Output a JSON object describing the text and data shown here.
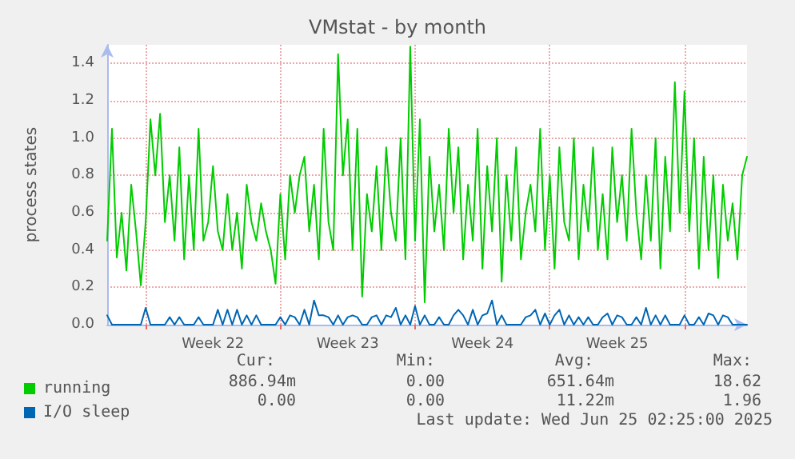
{
  "chart_data": {
    "type": "line",
    "title": "VMstat - by month",
    "ylabel": "process states",
    "categories": [
      null,
      null,
      null,
      null,
      null,
      null,
      null,
      null,
      null,
      null,
      null,
      null,
      null,
      null,
      null,
      null,
      null,
      null,
      null,
      null,
      null,
      null,
      "Week 22",
      null,
      null,
      null,
      null,
      null,
      null,
      null,
      null,
      null,
      null,
      null,
      null,
      null,
      null,
      null,
      null,
      null,
      null,
      null,
      null,
      null,
      null,
      null,
      null,
      null,
      null,
      null,
      "Week 23",
      null,
      null,
      null,
      null,
      null,
      null,
      null,
      null,
      null,
      null,
      null,
      null,
      null,
      null,
      null,
      null,
      null,
      null,
      null,
      null,
      null,
      null,
      null,
      null,
      null,
      null,
      null,
      "Week 24",
      null,
      null,
      null,
      null,
      null,
      null,
      null,
      null,
      null,
      null,
      null,
      null,
      null,
      null,
      null,
      null,
      null,
      null,
      null,
      null,
      null,
      null,
      null,
      null,
      null,
      null,
      null,
      "Week 25",
      null,
      null,
      null,
      null,
      null,
      null,
      null,
      null,
      null,
      null,
      null,
      null,
      null,
      null,
      null,
      null,
      null,
      null,
      null,
      null,
      null,
      null,
      null,
      null,
      null,
      null,
      null
    ],
    "series": [
      {
        "name": "running",
        "color": "#00cc00",
        "values": [
          0.45,
          1.05,
          0.36,
          0.6,
          0.29,
          0.75,
          0.5,
          0.21,
          0.55,
          1.1,
          0.8,
          1.13,
          0.55,
          0.8,
          0.45,
          0.95,
          0.35,
          0.8,
          0.4,
          1.05,
          0.45,
          0.55,
          0.85,
          0.5,
          0.4,
          0.7,
          0.4,
          0.6,
          0.3,
          0.75,
          0.55,
          0.45,
          0.65,
          0.5,
          0.4,
          0.22,
          0.7,
          0.35,
          0.8,
          0.6,
          0.8,
          0.9,
          0.5,
          0.75,
          0.35,
          1.05,
          0.55,
          0.4,
          1.45,
          0.8,
          1.1,
          0.4,
          1.05,
          0.15,
          0.7,
          0.5,
          0.85,
          0.4,
          0.95,
          0.6,
          0.45,
          1.0,
          0.35,
          1.49,
          0.45,
          1.1,
          0.12,
          0.9,
          0.5,
          0.75,
          0.4,
          1.05,
          0.6,
          0.95,
          0.35,
          0.75,
          0.45,
          1.05,
          0.3,
          0.85,
          0.5,
          1.0,
          0.23,
          0.8,
          0.45,
          0.95,
          0.35,
          0.6,
          0.75,
          0.5,
          1.05,
          0.4,
          0.8,
          0.3,
          0.95,
          0.55,
          0.45,
          1.0,
          0.35,
          0.75,
          0.5,
          0.95,
          0.4,
          0.7,
          0.35,
          0.95,
          0.55,
          0.8,
          0.45,
          1.05,
          0.6,
          0.35,
          0.8,
          0.45,
          1.0,
          0.3,
          0.9,
          0.5,
          1.3,
          0.6,
          1.25,
          0.5,
          1.0,
          0.3,
          0.9,
          0.4,
          0.8,
          0.25,
          0.75,
          0.45,
          0.65,
          0.35,
          0.8,
          0.9
        ]
      },
      {
        "name": "I/O sleep",
        "color": "#0066b3",
        "values": [
          0.05,
          0,
          0,
          0,
          0,
          0,
          0,
          0,
          0.09,
          0,
          0,
          0,
          0,
          0.04,
          0,
          0.04,
          0,
          0,
          0,
          0.04,
          0,
          0,
          0,
          0.08,
          0,
          0.08,
          0,
          0.08,
          0,
          0.05,
          0,
          0.05,
          0,
          0,
          0,
          0,
          0.04,
          0,
          0.05,
          0.04,
          0,
          0.08,
          0,
          0.13,
          0.05,
          0.05,
          0.04,
          0,
          0.05,
          0,
          0.04,
          0.05,
          0.04,
          0,
          0,
          0.04,
          0.05,
          0,
          0.05,
          0.04,
          0.09,
          0,
          0.05,
          0,
          0.1,
          0,
          0.05,
          0,
          0,
          0.04,
          0,
          0,
          0.05,
          0.08,
          0.05,
          0,
          0.08,
          0,
          0.05,
          0.06,
          0.13,
          0,
          0.05,
          0,
          0,
          0,
          0,
          0.04,
          0.05,
          0.08,
          0,
          0.06,
          0,
          0.05,
          0.08,
          0,
          0.05,
          0,
          0.04,
          0,
          0.04,
          0,
          0,
          0.04,
          0.06,
          0,
          0.05,
          0.04,
          0,
          0,
          0.04,
          0,
          0.09,
          0,
          0.05,
          0,
          0.05,
          0,
          0,
          0,
          0.05,
          0,
          0,
          0.04,
          0,
          0.06,
          0.05,
          0,
          0.05,
          0.04,
          0,
          0,
          0,
          0
        ]
      }
    ],
    "ylim": [
      0,
      1.5
    ],
    "yticks": [
      {
        "value": 0,
        "label": "0.0"
      },
      {
        "value": 0.2,
        "label": "0.2"
      },
      {
        "value": 0.4,
        "label": "0.4"
      },
      {
        "value": 0.6,
        "label": "0.6"
      },
      {
        "value": 0.8,
        "label": "0.8"
      },
      {
        "value": 1,
        "label": "1.0"
      },
      {
        "value": 1.2,
        "label": "1.2"
      },
      {
        "value": 1.4,
        "label": "1.4"
      }
    ],
    "grid": true,
    "legend": "bottom left",
    "marker": "none",
    "line_style": "solid",
    "annotations": [
      "Cur:",
      "Min:",
      "Avg:",
      "Max:",
      "886.94m",
      "0.00",
      "651.64m",
      "18.62",
      "0.00",
      "0.00",
      "11.22m",
      "1.96",
      "Last update: Wed Jun 25 02:25:00 2025"
    ]
  }
}
